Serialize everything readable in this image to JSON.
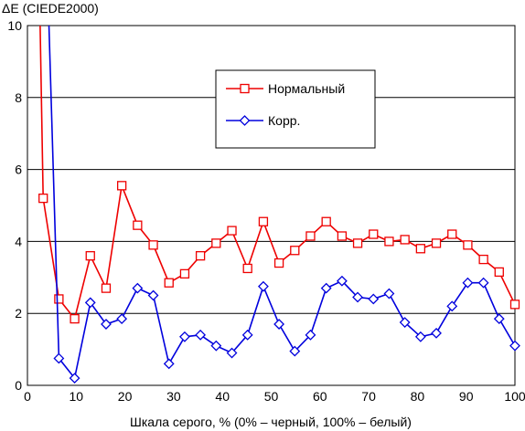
{
  "chart_data": {
    "type": "line",
    "title": "",
    "ylabel": "ΔE (CIEDE2000)",
    "xlabel": "Шкала серого, % (0% – черный, 100% – белый)",
    "xlim": [
      0,
      100
    ],
    "ylim": [
      0,
      10
    ],
    "xticks": [
      0,
      10,
      20,
      30,
      40,
      50,
      60,
      70,
      80,
      90,
      100
    ],
    "yticks": [
      0,
      2,
      4,
      6,
      8,
      10
    ],
    "grid": "horizontal",
    "legend_placement": "top-center",
    "series": [
      {
        "name": "Нормальный",
        "color": "#ee0000",
        "marker": "square",
        "x": [
          3.23,
          6.45,
          9.68,
          12.9,
          16.13,
          19.35,
          22.58,
          25.81,
          29.03,
          32.26,
          35.48,
          38.71,
          41.94,
          45.16,
          48.39,
          51.61,
          54.84,
          58.06,
          61.29,
          64.52,
          67.74,
          70.97,
          74.19,
          77.42,
          80.65,
          83.87,
          87.1,
          90.32,
          93.55,
          96.77,
          100
        ],
        "y": [
          5.2,
          2.4,
          1.85,
          3.6,
          2.7,
          5.55,
          4.45,
          3.9,
          2.85,
          3.1,
          3.6,
          3.95,
          4.3,
          3.25,
          4.55,
          3.4,
          3.75,
          4.15,
          4.55,
          4.15,
          3.95,
          4.2,
          4.0,
          4.05,
          3.8,
          3.95,
          4.2,
          3.9,
          3.5,
          3.15,
          2.25
        ],
        "y_offscale": 30
      },
      {
        "name": "Корр.",
        "color": "#0000dd",
        "marker": "diamond",
        "x": [
          6.45,
          9.68,
          12.9,
          16.13,
          19.35,
          22.58,
          25.81,
          29.03,
          32.26,
          35.48,
          38.71,
          41.94,
          45.16,
          48.39,
          51.61,
          54.84,
          58.06,
          61.29,
          64.52,
          67.74,
          70.97,
          74.19,
          77.42,
          80.65,
          83.87,
          87.1,
          90.32,
          93.55,
          96.77,
          100
        ],
        "y": [
          0.75,
          0.2,
          2.3,
          1.7,
          1.85,
          2.7,
          2.5,
          0.6,
          1.35,
          1.4,
          1.1,
          0.9,
          1.4,
          2.75,
          1.7,
          0.95,
          1.4,
          2.7,
          2.9,
          2.45,
          2.4,
          2.55,
          1.75,
          1.35,
          1.45,
          2.2,
          2.85,
          2.85,
          1.85,
          1.1
        ],
        "y_offscale": 30
      }
    ]
  }
}
